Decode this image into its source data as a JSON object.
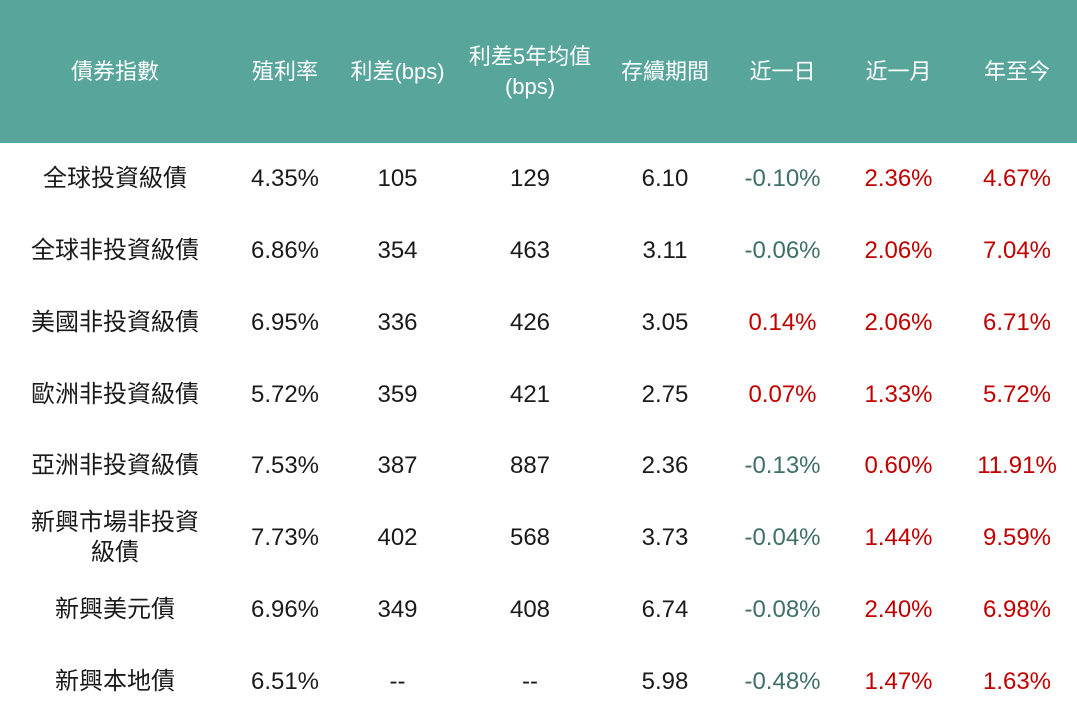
{
  "chart_data": {
    "type": "table",
    "columns": [
      "債券指數",
      "殖利率",
      "利差(bps)",
      "利差5年均值\n(bps)",
      "存續期間",
      "近一日",
      "近一月",
      "年至今"
    ],
    "rows": [
      {
        "index_name": "全球投資級債",
        "yield": "4.35%",
        "spread_bps": "105",
        "spread_5y_avg_bps": "129",
        "duration": "6.10",
        "chg_1d": "-0.10%",
        "chg_1m": "2.36%",
        "chg_ytd": "4.67%"
      },
      {
        "index_name": "全球非投資級債",
        "yield": "6.86%",
        "spread_bps": "354",
        "spread_5y_avg_bps": "463",
        "duration": "3.11",
        "chg_1d": "-0.06%",
        "chg_1m": "2.06%",
        "chg_ytd": "7.04%"
      },
      {
        "index_name": "美國非投資級債",
        "yield": "6.95%",
        "spread_bps": "336",
        "spread_5y_avg_bps": "426",
        "duration": "3.05",
        "chg_1d": "0.14%",
        "chg_1m": "2.06%",
        "chg_ytd": "6.71%"
      },
      {
        "index_name": "歐洲非投資級債",
        "yield": "5.72%",
        "spread_bps": "359",
        "spread_5y_avg_bps": "421",
        "duration": "2.75",
        "chg_1d": "0.07%",
        "chg_1m": "1.33%",
        "chg_ytd": "5.72%"
      },
      {
        "index_name": "亞洲非投資級債",
        "yield": "7.53%",
        "spread_bps": "387",
        "spread_5y_avg_bps": "887",
        "duration": "2.36",
        "chg_1d": "-0.13%",
        "chg_1m": "0.60%",
        "chg_ytd": "11.91%"
      },
      {
        "index_name": "新興市場非投資\n級債",
        "yield": "7.73%",
        "spread_bps": "402",
        "spread_5y_avg_bps": "568",
        "duration": "3.73",
        "chg_1d": "-0.04%",
        "chg_1m": "1.44%",
        "chg_ytd": "9.59%"
      },
      {
        "index_name": "新興美元債",
        "yield": "6.96%",
        "spread_bps": "349",
        "spread_5y_avg_bps": "408",
        "duration": "6.74",
        "chg_1d": "-0.08%",
        "chg_1m": "2.40%",
        "chg_ytd": "6.98%"
      },
      {
        "index_name": "新興本地債",
        "yield": "6.51%",
        "spread_bps": "--",
        "spread_5y_avg_bps": "--",
        "duration": "5.98",
        "chg_1d": "-0.48%",
        "chg_1m": "1.47%",
        "chg_ytd": "1.63%"
      }
    ]
  },
  "colors": {
    "header_bg": "#58A59B",
    "header_text": "#FFFFFF",
    "body_text": "#1A1A1A",
    "positive_red": "#C00000",
    "negative_teal": "#3E6F68"
  }
}
